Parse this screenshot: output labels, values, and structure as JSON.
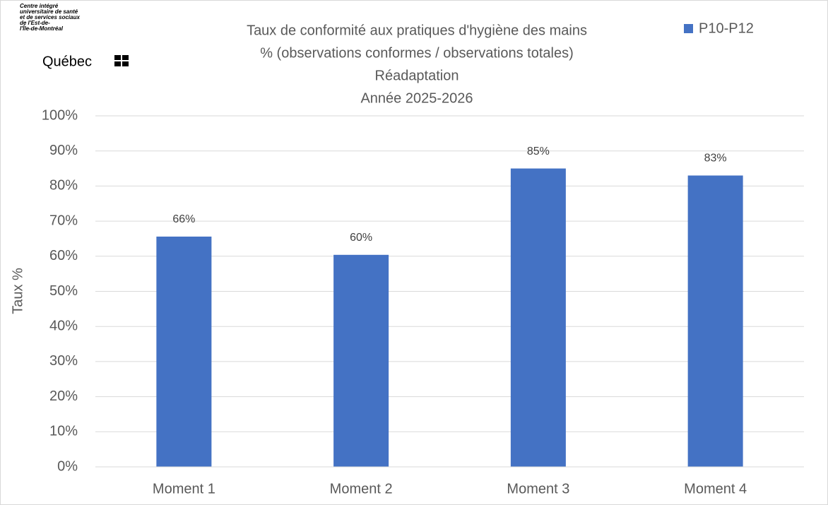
{
  "logo": {
    "lines": [
      "Centre intégré",
      "universitaire de santé",
      "et de services sociaux",
      "de l'Est-de-",
      "l'Île-de-Montréal"
    ],
    "name": "Québec"
  },
  "chart_data": {
    "type": "bar",
    "title": [
      "Taux de conformité aux pratiques d'hygiène des mains",
      "% (observations conformes / observations totales)",
      "Réadaptation",
      "Année 2025-2026"
    ],
    "y_label": "Taux %",
    "categories": [
      "Moment 1",
      "Moment 2",
      "Moment 3",
      "Moment 4"
    ],
    "series": [
      {
        "name": "P10-P12",
        "color": "#4472c4",
        "values": [
          65.6,
          60.4,
          85,
          83
        ],
        "value_labels": [
          "66%",
          "60%",
          "85%",
          "83%"
        ]
      }
    ],
    "ylim": [
      0,
      100
    ],
    "yticks": [
      {
        "value": 0,
        "label": "0%"
      },
      {
        "value": 10,
        "label": "10%"
      },
      {
        "value": 20,
        "label": "20%"
      },
      {
        "value": 30,
        "label": "30%"
      },
      {
        "value": 40,
        "label": "40%"
      },
      {
        "value": 50,
        "label": "50%"
      },
      {
        "value": 60,
        "label": "60%"
      },
      {
        "value": 70,
        "label": "70%"
      },
      {
        "value": 80,
        "label": "80%"
      },
      {
        "value": 90,
        "label": "90%"
      },
      {
        "value": 100,
        "label": "100%"
      }
    ],
    "grid": true,
    "legend": "top-right"
  }
}
